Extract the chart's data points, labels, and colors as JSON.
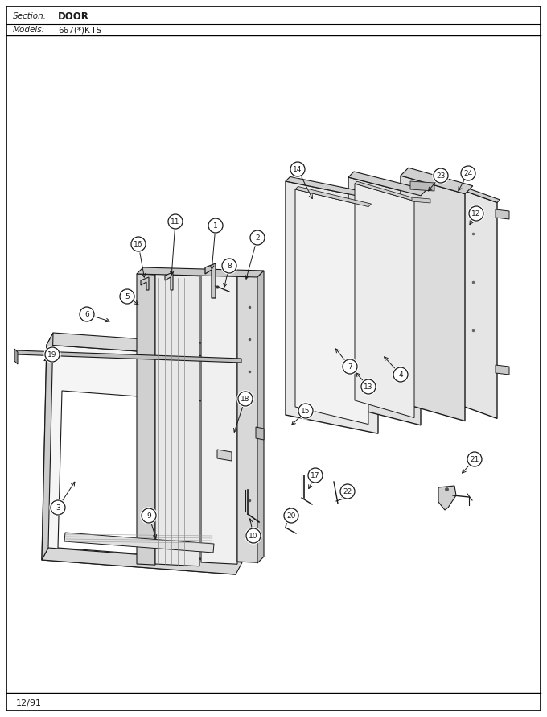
{
  "title_section": "Section:",
  "title_section_val": "DOOR",
  "title_models": "Models:",
  "title_models_val": "667(*)K-TS",
  "footer": "12/91",
  "bg_color": "#ffffff",
  "border_color": "#000000",
  "line_color": "#1a1a1a",
  "fig_width": 6.8,
  "fig_height": 8.9,
  "dpi": 100
}
